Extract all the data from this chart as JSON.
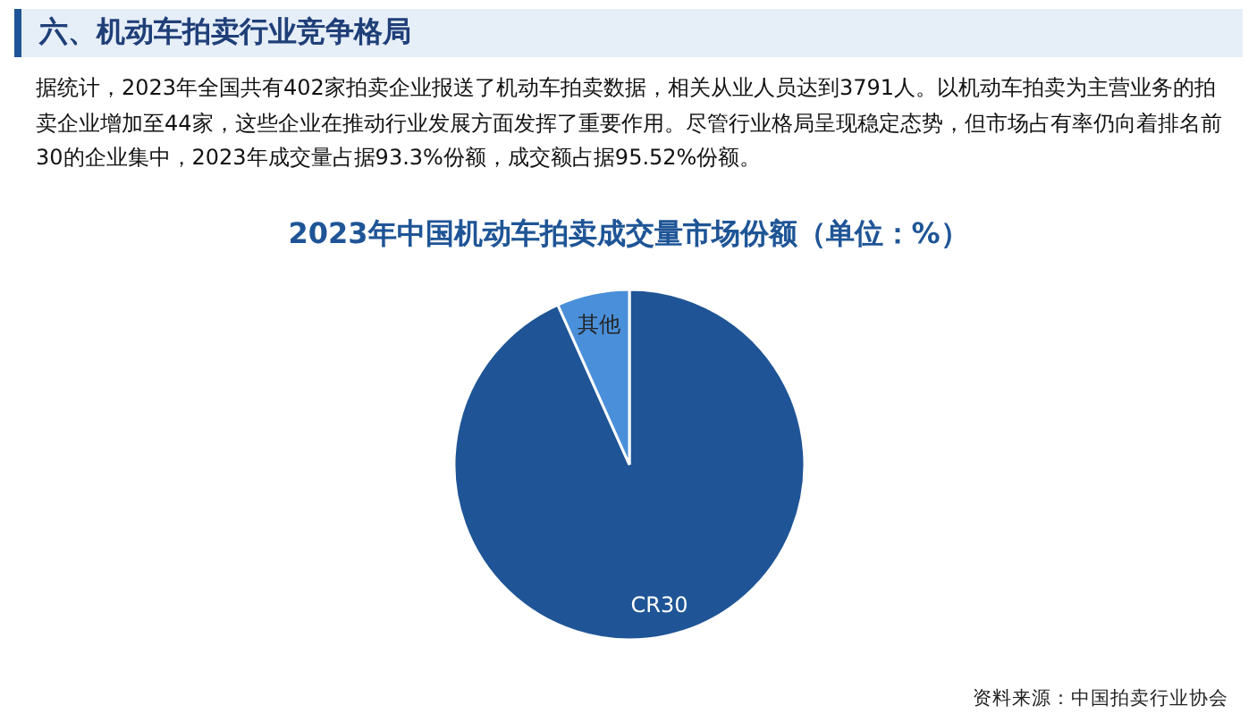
{
  "chart_data": {
    "type": "pie",
    "title": "2023年中国机动车拍卖成交量市场份额（单位：%）",
    "categories": [
      "CR30",
      "其他"
    ],
    "values": [
      93.3,
      6.7
    ],
    "colors": [
      "#1f5596",
      "#4a8fd9"
    ],
    "annotations": [
      "六、机动车拍卖行业竞争格局",
      "据统计，2023年全国共有402家拍卖企业报送了机动车拍卖数据，相关从业人员达到3791人。以机动车拍卖为主营业务的拍卖企业增加至44家，这些企业在推动行业发展方面发挥了重要作用。尽管行业格局呈现稳定态势，但市场占有率仍向着排名前30的企业集中，2023年成交量占据93.3%份额，成交额占据95.52%份额。",
      "资料来源：中国拍卖行业协会"
    ]
  }
}
